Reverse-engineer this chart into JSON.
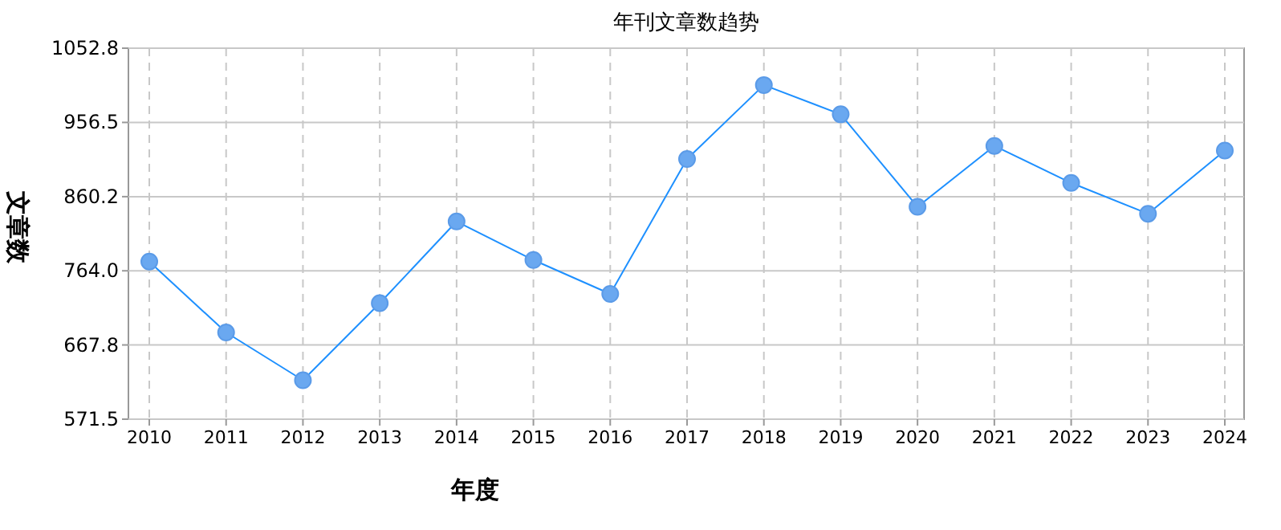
{
  "chart_data": {
    "type": "line",
    "title": "年刊文章数趋势",
    "xlabel": "年度",
    "ylabel": "文章数",
    "categories": [
      "2010",
      "2011",
      "2012",
      "2013",
      "2014",
      "2015",
      "2016",
      "2017",
      "2018",
      "2019",
      "2020",
      "2021",
      "2022",
      "2023",
      "2024"
    ],
    "series": [
      {
        "color": "#1e90ff",
        "values": [
          776,
          684,
          622,
          722,
          828,
          778,
          734,
          909,
          1005,
          967,
          847,
          926,
          878,
          838,
          920
        ]
      }
    ],
    "ylim": [
      571.5,
      1052.8
    ],
    "yticks": [
      571.5,
      667.8,
      {
        "value": 764,
        "label": "764.0"
      },
      860.2,
      956.5,
      1052.8
    ],
    "grid": true,
    "marker": "circle",
    "line_style": "solid"
  }
}
